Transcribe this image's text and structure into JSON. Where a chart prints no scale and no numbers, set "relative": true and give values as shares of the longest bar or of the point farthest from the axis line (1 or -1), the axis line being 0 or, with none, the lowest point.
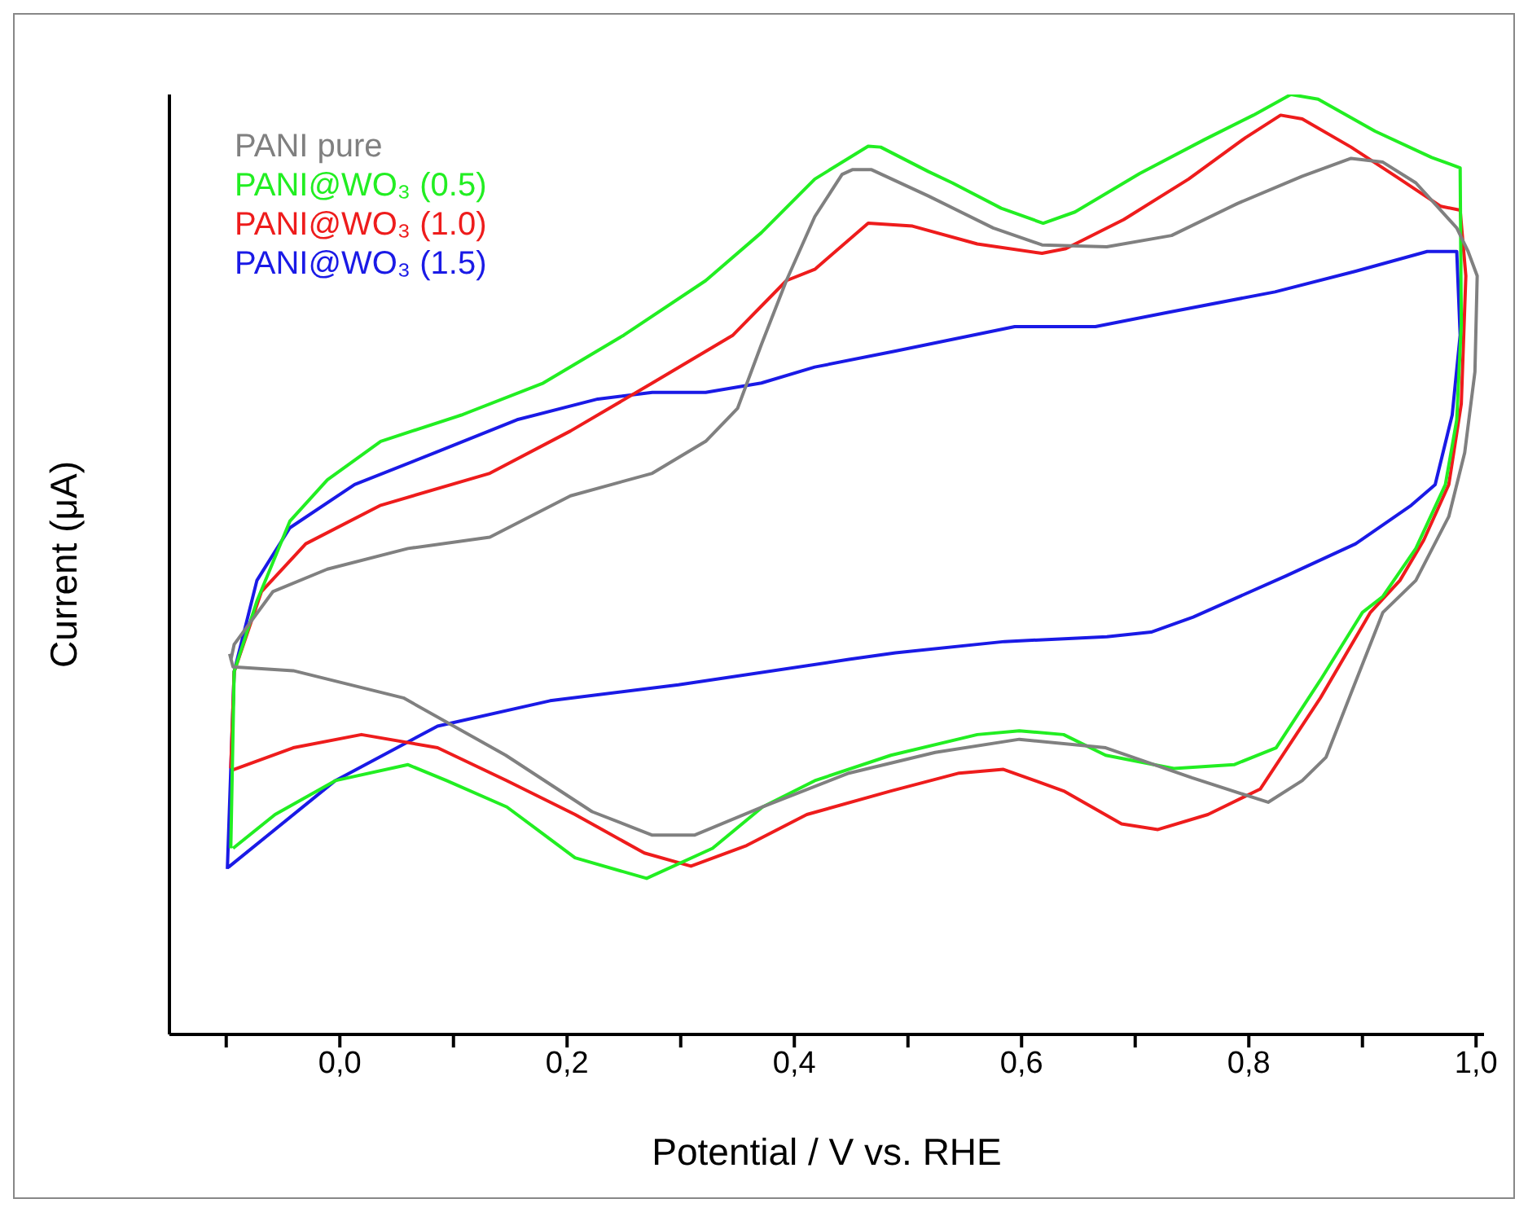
{
  "chart_data": {
    "type": "line",
    "xlabel": "Potential / V vs. RHE",
    "ylabel": "Current (μA)",
    "relative": true,
    "legend": "top left",
    "grid": false,
    "marker": "none",
    "line_style": "solid",
    "xlim": [
      -0.15,
      1.007
    ],
    "xticks": [
      {
        "value": -0.1,
        "label": null
      },
      {
        "value": 0,
        "label": "0,0"
      },
      {
        "value": 0.1,
        "label": null
      },
      {
        "value": 0.2,
        "label": "0,2"
      },
      {
        "value": 0.3,
        "label": null
      },
      {
        "value": 0.4,
        "label": "0,4"
      },
      {
        "value": 0.5,
        "label": null
      },
      {
        "value": 0.6,
        "label": "0,6"
      },
      {
        "value": 0.7,
        "label": null
      },
      {
        "value": 0.8,
        "label": "0,8"
      },
      {
        "value": 0.9,
        "label": null
      },
      {
        "value": 1.0,
        "label": "1,0"
      }
    ],
    "series": [
      {
        "name": "PANI pure",
        "color": "#808080",
        "x": [
          -0.096,
          -0.093,
          -0.059,
          -0.011,
          0.06,
          0.132,
          0.203,
          0.275,
          0.322,
          0.35,
          0.371,
          0.393,
          0.418,
          0.442,
          0.451,
          0.468,
          0.518,
          0.575,
          0.618,
          0.675,
          0.732,
          0.79,
          0.847,
          0.89,
          0.918,
          0.947,
          0.983,
          0.993,
          1.001,
          0.999,
          0.99,
          0.976,
          0.947,
          0.918,
          0.89,
          0.868,
          0.847,
          0.817,
          0.75,
          0.674,
          0.598,
          0.524,
          0.448,
          0.372,
          0.312,
          0.275,
          0.222,
          0.146,
          0.056,
          -0.041,
          -0.094,
          -0.097
        ],
        "values": [
          0.398,
          0.415,
          0.471,
          0.495,
          0.517,
          0.529,
          0.573,
          0.597,
          0.631,
          0.666,
          0.734,
          0.802,
          0.87,
          0.915,
          0.92,
          0.92,
          0.892,
          0.858,
          0.84,
          0.838,
          0.85,
          0.884,
          0.913,
          0.932,
          0.928,
          0.906,
          0.858,
          0.833,
          0.807,
          0.705,
          0.619,
          0.551,
          0.483,
          0.449,
          0.363,
          0.295,
          0.27,
          0.247,
          0.273,
          0.305,
          0.314,
          0.3,
          0.278,
          0.242,
          0.212,
          0.212,
          0.237,
          0.297,
          0.358,
          0.387,
          0.391,
          0.405
        ]
      },
      {
        "name": "PANI@WO₃ (0.5)",
        "color": "#22ee22",
        "x": [
          -0.096,
          -0.093,
          -0.073,
          -0.044,
          -0.011,
          0.036,
          0.107,
          0.179,
          0.25,
          0.322,
          0.371,
          0.418,
          0.465,
          0.476,
          0.518,
          0.539,
          0.582,
          0.619,
          0.647,
          0.704,
          0.761,
          0.804,
          0.837,
          0.861,
          0.911,
          0.961,
          0.986,
          0.987,
          0.983,
          0.973,
          0.947,
          0.918,
          0.9,
          0.863,
          0.824,
          0.787,
          0.734,
          0.674,
          0.637,
          0.598,
          0.561,
          0.485,
          0.418,
          0.372,
          0.328,
          0.27,
          0.207,
          0.147,
          0.094,
          0.06,
          -0.004,
          -0.057,
          -0.094
        ],
        "values": [
          0.198,
          0.386,
          0.461,
          0.546,
          0.59,
          0.631,
          0.659,
          0.693,
          0.744,
          0.802,
          0.853,
          0.91,
          0.945,
          0.944,
          0.918,
          0.906,
          0.879,
          0.863,
          0.875,
          0.916,
          0.952,
          0.978,
          1.0,
          0.995,
          0.961,
          0.933,
          0.922,
          0.756,
          0.654,
          0.585,
          0.517,
          0.466,
          0.449,
          0.377,
          0.305,
          0.287,
          0.283,
          0.297,
          0.319,
          0.323,
          0.319,
          0.297,
          0.27,
          0.242,
          0.198,
          0.166,
          0.188,
          0.242,
          0.27,
          0.287,
          0.27,
          0.234,
          0.198
        ]
      },
      {
        "name": "PANI@WO₃ (1.0)",
        "color": "#ee1c1c",
        "x": [
          -0.096,
          -0.093,
          -0.069,
          -0.03,
          0.036,
          0.132,
          0.203,
          0.275,
          0.346,
          0.393,
          0.418,
          0.465,
          0.504,
          0.561,
          0.618,
          0.639,
          0.69,
          0.747,
          0.797,
          0.828,
          0.847,
          0.89,
          0.933,
          0.969,
          0.986,
          0.991,
          0.987,
          0.976,
          0.954,
          0.933,
          0.907,
          0.863,
          0.81,
          0.764,
          0.72,
          0.688,
          0.637,
          0.584,
          0.545,
          0.485,
          0.411,
          0.358,
          0.309,
          0.268,
          0.207,
          0.147,
          0.086,
          0.019,
          -0.041,
          -0.095
        ],
        "values": [
          0.283,
          0.386,
          0.471,
          0.522,
          0.563,
          0.597,
          0.642,
          0.693,
          0.744,
          0.802,
          0.814,
          0.863,
          0.86,
          0.841,
          0.831,
          0.836,
          0.867,
          0.91,
          0.954,
          0.978,
          0.974,
          0.944,
          0.91,
          0.881,
          0.877,
          0.807,
          0.671,
          0.585,
          0.526,
          0.483,
          0.449,
          0.358,
          0.261,
          0.234,
          0.218,
          0.224,
          0.259,
          0.282,
          0.278,
          0.259,
          0.234,
          0.201,
          0.179,
          0.193,
          0.234,
          0.27,
          0.305,
          0.319,
          0.305,
          0.281
        ]
      },
      {
        "name": "PANI@WO₃ (1.5)",
        "color": "#1a1ae6",
        "x": [
          -0.099,
          -0.093,
          -0.073,
          -0.044,
          0.013,
          0.084,
          0.156,
          0.227,
          0.275,
          0.322,
          0.371,
          0.418,
          0.489,
          0.594,
          0.665,
          0.728,
          0.823,
          0.894,
          0.957,
          0.983,
          0.986,
          0.979,
          0.964,
          0.943,
          0.894,
          0.833,
          0.751,
          0.714,
          0.675,
          0.585,
          0.489,
          0.448,
          0.298,
          0.185,
          0.086,
          -0.004,
          -0.098
        ],
        "values": [
          0.176,
          0.386,
          0.483,
          0.539,
          0.585,
          0.619,
          0.654,
          0.676,
          0.683,
          0.683,
          0.693,
          0.71,
          0.727,
          0.753,
          0.753,
          0.768,
          0.79,
          0.812,
          0.833,
          0.833,
          0.744,
          0.659,
          0.585,
          0.563,
          0.522,
          0.488,
          0.444,
          0.428,
          0.423,
          0.418,
          0.406,
          0.399,
          0.372,
          0.355,
          0.328,
          0.27,
          0.178
        ]
      }
    ]
  }
}
